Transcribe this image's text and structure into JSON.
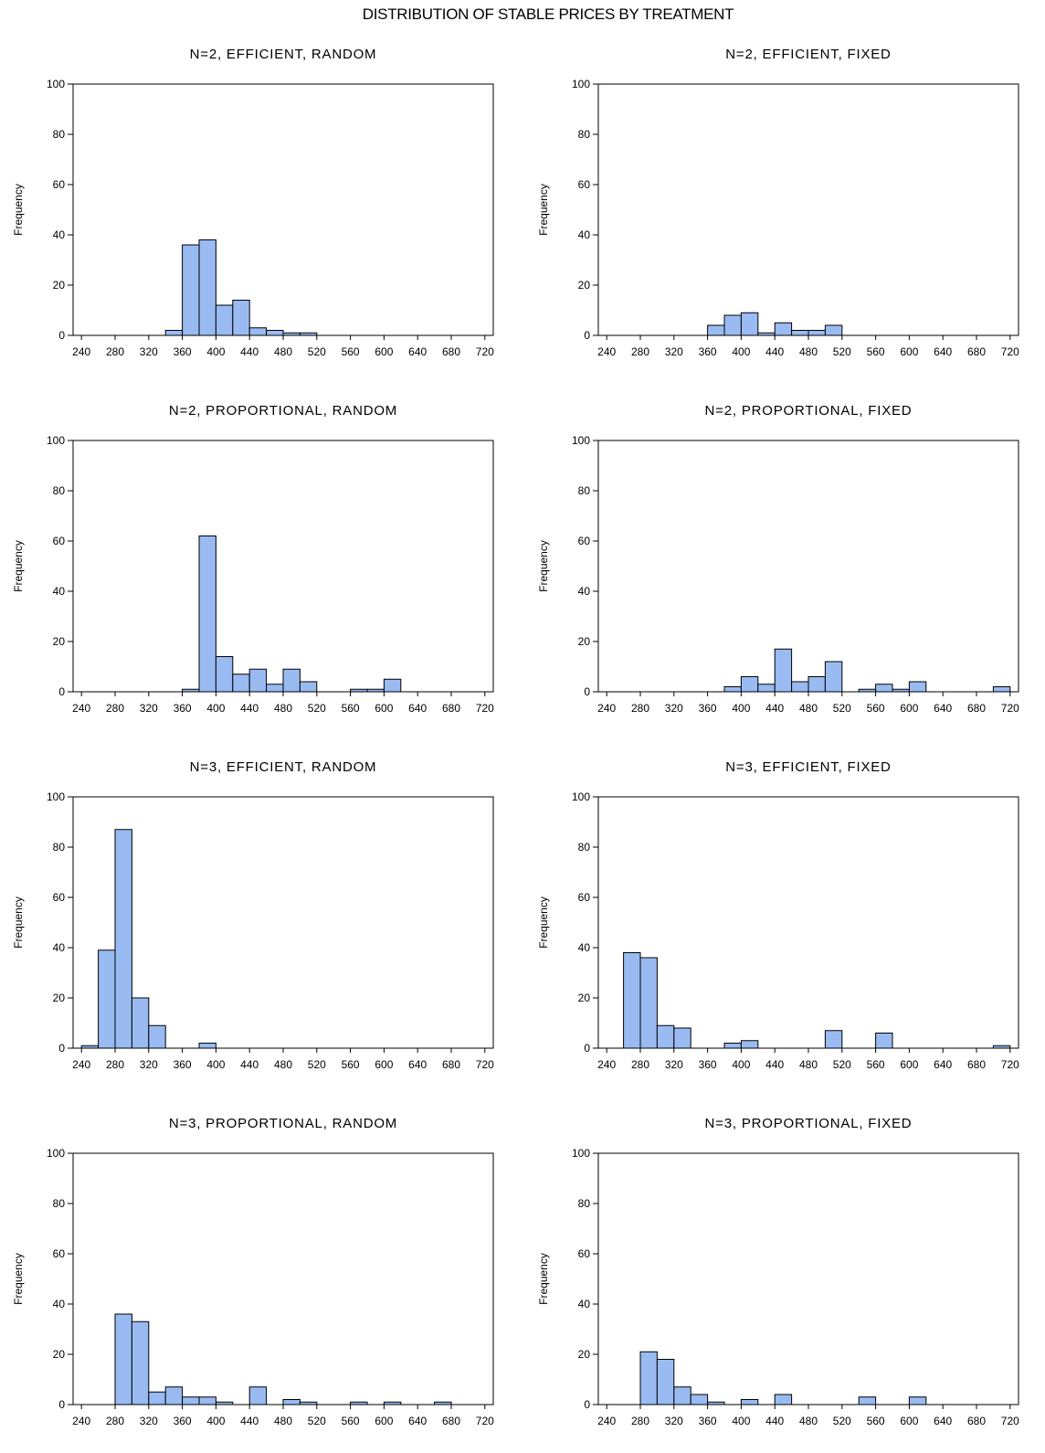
{
  "title": "DISTRIBUTION OF STABLE PRICES BY TREATMENT",
  "chart_data": [
    {
      "type": "bar",
      "title": "N=2, EFFICIENT, RANDOM",
      "xlabel": "",
      "ylabel": "Frequency",
      "bin_width": 20,
      "xlim": [
        230,
        730
      ],
      "ylim": [
        0,
        100
      ],
      "xticks": [
        240,
        280,
        320,
        360,
        400,
        440,
        480,
        520,
        560,
        600,
        640,
        680,
        720
      ],
      "yticks": [
        0,
        20,
        40,
        60,
        80,
        100
      ],
      "bins": [
        {
          "x": 340,
          "y": 2
        },
        {
          "x": 360,
          "y": 36
        },
        {
          "x": 380,
          "y": 38
        },
        {
          "x": 400,
          "y": 12
        },
        {
          "x": 420,
          "y": 14
        },
        {
          "x": 440,
          "y": 3
        },
        {
          "x": 460,
          "y": 2
        },
        {
          "x": 480,
          "y": 1
        },
        {
          "x": 500,
          "y": 1
        }
      ]
    },
    {
      "type": "bar",
      "title": "N=2, EFFICIENT, FIXED",
      "xlabel": "",
      "ylabel": "Frequency",
      "bin_width": 20,
      "xlim": [
        230,
        730
      ],
      "ylim": [
        0,
        100
      ],
      "xticks": [
        240,
        280,
        320,
        360,
        400,
        440,
        480,
        520,
        560,
        600,
        640,
        680,
        720
      ],
      "yticks": [
        0,
        20,
        40,
        60,
        80,
        100
      ],
      "bins": [
        {
          "x": 360,
          "y": 4
        },
        {
          "x": 380,
          "y": 8
        },
        {
          "x": 400,
          "y": 9
        },
        {
          "x": 420,
          "y": 1
        },
        {
          "x": 440,
          "y": 5
        },
        {
          "x": 460,
          "y": 2
        },
        {
          "x": 480,
          "y": 2
        },
        {
          "x": 500,
          "y": 4
        }
      ]
    },
    {
      "type": "bar",
      "title": "N=2, PROPORTIONAL, RANDOM",
      "xlabel": "",
      "ylabel": "Frequency",
      "bin_width": 20,
      "xlim": [
        230,
        730
      ],
      "ylim": [
        0,
        100
      ],
      "xticks": [
        240,
        280,
        320,
        360,
        400,
        440,
        480,
        520,
        560,
        600,
        640,
        680,
        720
      ],
      "yticks": [
        0,
        20,
        40,
        60,
        80,
        100
      ],
      "bins": [
        {
          "x": 360,
          "y": 1
        },
        {
          "x": 380,
          "y": 62
        },
        {
          "x": 400,
          "y": 14
        },
        {
          "x": 420,
          "y": 7
        },
        {
          "x": 440,
          "y": 9
        },
        {
          "x": 460,
          "y": 3
        },
        {
          "x": 480,
          "y": 9
        },
        {
          "x": 500,
          "y": 4
        },
        {
          "x": 560,
          "y": 1
        },
        {
          "x": 580,
          "y": 1
        },
        {
          "x": 600,
          "y": 5
        }
      ]
    },
    {
      "type": "bar",
      "title": "N=2, PROPORTIONAL, FIXED",
      "xlabel": "",
      "ylabel": "Frequency",
      "bin_width": 20,
      "xlim": [
        230,
        730
      ],
      "ylim": [
        0,
        100
      ],
      "xticks": [
        240,
        280,
        320,
        360,
        400,
        440,
        480,
        520,
        560,
        600,
        640,
        680,
        720
      ],
      "yticks": [
        0,
        20,
        40,
        60,
        80,
        100
      ],
      "bins": [
        {
          "x": 380,
          "y": 2
        },
        {
          "x": 400,
          "y": 6
        },
        {
          "x": 420,
          "y": 3
        },
        {
          "x": 440,
          "y": 17
        },
        {
          "x": 460,
          "y": 4
        },
        {
          "x": 480,
          "y": 6
        },
        {
          "x": 500,
          "y": 12
        },
        {
          "x": 540,
          "y": 1
        },
        {
          "x": 560,
          "y": 3
        },
        {
          "x": 580,
          "y": 1
        },
        {
          "x": 600,
          "y": 4
        },
        {
          "x": 700,
          "y": 2
        }
      ]
    },
    {
      "type": "bar",
      "title": "N=3, EFFICIENT, RANDOM",
      "xlabel": "",
      "ylabel": "Frequency",
      "bin_width": 20,
      "xlim": [
        230,
        730
      ],
      "ylim": [
        0,
        100
      ],
      "xticks": [
        240,
        280,
        320,
        360,
        400,
        440,
        480,
        520,
        560,
        600,
        640,
        680,
        720
      ],
      "yticks": [
        0,
        20,
        40,
        60,
        80,
        100
      ],
      "bins": [
        {
          "x": 240,
          "y": 1
        },
        {
          "x": 260,
          "y": 39
        },
        {
          "x": 280,
          "y": 87
        },
        {
          "x": 300,
          "y": 20
        },
        {
          "x": 320,
          "y": 9
        },
        {
          "x": 380,
          "y": 2
        }
      ]
    },
    {
      "type": "bar",
      "title": "N=3, EFFICIENT, FIXED",
      "xlabel": "",
      "ylabel": "Frequency",
      "bin_width": 20,
      "xlim": [
        230,
        730
      ],
      "ylim": [
        0,
        100
      ],
      "xticks": [
        240,
        280,
        320,
        360,
        400,
        440,
        480,
        520,
        560,
        600,
        640,
        680,
        720
      ],
      "yticks": [
        0,
        20,
        40,
        60,
        80,
        100
      ],
      "bins": [
        {
          "x": 260,
          "y": 38
        },
        {
          "x": 280,
          "y": 36
        },
        {
          "x": 300,
          "y": 9
        },
        {
          "x": 320,
          "y": 8
        },
        {
          "x": 380,
          "y": 2
        },
        {
          "x": 400,
          "y": 3
        },
        {
          "x": 500,
          "y": 7
        },
        {
          "x": 560,
          "y": 6
        },
        {
          "x": 700,
          "y": 1
        }
      ]
    },
    {
      "type": "bar",
      "title": "N=3, PROPORTIONAL, RANDOM",
      "xlabel": "",
      "ylabel": "Frequency",
      "bin_width": 20,
      "xlim": [
        230,
        730
      ],
      "ylim": [
        0,
        100
      ],
      "xticks": [
        240,
        280,
        320,
        360,
        400,
        440,
        480,
        520,
        560,
        600,
        640,
        680,
        720
      ],
      "yticks": [
        0,
        20,
        40,
        60,
        80,
        100
      ],
      "bins": [
        {
          "x": 280,
          "y": 36
        },
        {
          "x": 300,
          "y": 33
        },
        {
          "x": 320,
          "y": 5
        },
        {
          "x": 340,
          "y": 7
        },
        {
          "x": 360,
          "y": 3
        },
        {
          "x": 380,
          "y": 3
        },
        {
          "x": 400,
          "y": 1
        },
        {
          "x": 440,
          "y": 7
        },
        {
          "x": 480,
          "y": 2
        },
        {
          "x": 500,
          "y": 1
        },
        {
          "x": 560,
          "y": 1
        },
        {
          "x": 600,
          "y": 1
        },
        {
          "x": 660,
          "y": 1
        }
      ]
    },
    {
      "type": "bar",
      "title": "N=3, PROPORTIONAL, FIXED",
      "xlabel": "",
      "ylabel": "Frequency",
      "bin_width": 20,
      "xlim": [
        230,
        730
      ],
      "ylim": [
        0,
        100
      ],
      "xticks": [
        240,
        280,
        320,
        360,
        400,
        440,
        480,
        520,
        560,
        600,
        640,
        680,
        720
      ],
      "yticks": [
        0,
        20,
        40,
        60,
        80,
        100
      ],
      "bins": [
        {
          "x": 280,
          "y": 21
        },
        {
          "x": 300,
          "y": 18
        },
        {
          "x": 320,
          "y": 7
        },
        {
          "x": 340,
          "y": 4
        },
        {
          "x": 360,
          "y": 1
        },
        {
          "x": 400,
          "y": 2
        },
        {
          "x": 440,
          "y": 4
        },
        {
          "x": 540,
          "y": 3
        },
        {
          "x": 600,
          "y": 3
        }
      ]
    }
  ],
  "style": {
    "bar_fill": "#99bbf2",
    "bar_stroke": "#000000",
    "axis_color": "#000000"
  }
}
